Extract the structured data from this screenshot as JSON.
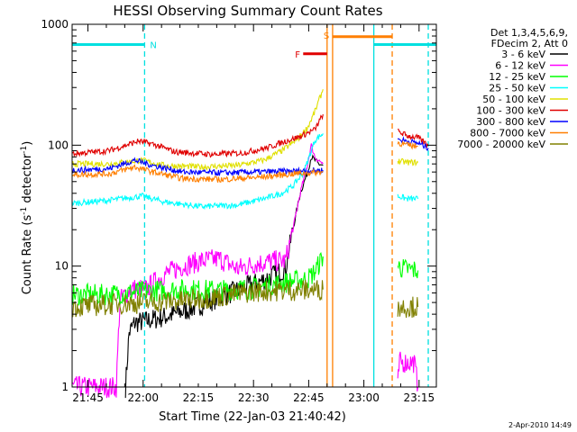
{
  "chart_data": {
    "type": "line",
    "title": "HESSI Observing Summary Count Rates",
    "xlabel": "Start Time (22-Jan-03 21:40:42)",
    "ylabel_main": "Count Rate (s",
    "ylabel_sup1": "-1",
    "ylabel_mid": " detector",
    "ylabel_sup2": "-1",
    "ylabel_end": ")",
    "x_unit": "minutes after 21:40:42",
    "xlim": [
      0,
      99
    ],
    "ylim": [
      1,
      1000
    ],
    "y_scale": "log",
    "x_ticks": [
      {
        "label": "21:45",
        "x": 4.3
      },
      {
        "label": "22:00",
        "x": 19.3
      },
      {
        "label": "22:15",
        "x": 34.3
      },
      {
        "label": "22:30",
        "x": 49.3
      },
      {
        "label": "22:45",
        "x": 64.3
      },
      {
        "label": "23:00",
        "x": 79.3
      },
      {
        "label": "23:15",
        "x": 94.3
      }
    ],
    "y_ticks": [
      {
        "label": "1",
        "y": 1
      },
      {
        "label": "10",
        "y": 10
      },
      {
        "label": "100",
        "y": 100
      },
      {
        "label": "1000",
        "y": 1000
      }
    ],
    "legend_header": [
      "Det 1,3,4,5,6,9,",
      "FDecim 2, Att 0"
    ],
    "legend_position": "right",
    "flag_bars": [
      {
        "label": "N",
        "color": "#00e0e0",
        "segments": [
          [
            0,
            19.7
          ],
          [
            82,
            99
          ]
        ],
        "y": 680
      },
      {
        "label": "S",
        "color": "#ff7f00",
        "segments": [
          [
            70.8,
            87
          ]
        ],
        "y": 790
      },
      {
        "label": "F",
        "color": "#e00000",
        "segments": [
          [
            62.8,
            69.3
          ]
        ],
        "y": 570
      }
    ],
    "marker_lines": [
      {
        "x": 19.7,
        "color": "#00e0e0",
        "style": "dashed"
      },
      {
        "x": 69.3,
        "color": "#ff7f00",
        "style": "solid"
      },
      {
        "x": 70.8,
        "color": "#ff7f00",
        "style": "solid"
      },
      {
        "x": 82.0,
        "color": "#00e0e0",
        "style": "solid"
      },
      {
        "x": 87.0,
        "color": "#ff7f00",
        "style": "dashed"
      },
      {
        "x": 96.8,
        "color": "#00e0e0",
        "style": "dashed"
      }
    ],
    "series": [
      {
        "name": "3 - 6 keV",
        "color": "#000000",
        "segments": [
          [
            [
              14.5,
              1
            ],
            [
              15.5,
              2.8
            ],
            [
              17,
              3.4
            ],
            [
              20,
              3.5
            ],
            [
              25,
              3.8
            ],
            [
              30,
              4.2
            ],
            [
              35,
              4.8
            ],
            [
              40,
              5.5
            ],
            [
              45,
              6.3
            ],
            [
              50,
              7.2
            ],
            [
              55,
              8.5
            ],
            [
              58,
              9.5
            ],
            [
              60,
              20
            ],
            [
              62,
              40
            ],
            [
              64,
              60
            ],
            [
              65,
              80
            ],
            [
              66,
              75
            ],
            [
              67,
              70
            ],
            [
              68.2,
              68
            ]
          ]
        ]
      },
      {
        "name": "6 - 12 keV",
        "color": "#ff00ff",
        "segments": [
          [
            [
              0,
              1
            ],
            [
              12,
              1
            ],
            [
              13,
              5.2
            ],
            [
              16,
              6.5
            ],
            [
              20,
              6.4
            ],
            [
              25,
              8.5
            ],
            [
              30,
              10
            ],
            [
              35,
              11
            ],
            [
              40,
              11.5
            ],
            [
              45,
              9.5
            ],
            [
              50,
              10.5
            ],
            [
              55,
              11
            ],
            [
              58,
              11
            ],
            [
              60,
              20
            ],
            [
              62,
              40
            ],
            [
              64,
              70
            ],
            [
              65,
              100
            ],
            [
              66,
              80
            ],
            [
              67,
              75
            ],
            [
              68.2,
              70
            ]
          ],
          [
            [
              88.5,
              1
            ],
            [
              89,
              1.6
            ],
            [
              93,
              1.6
            ],
            [
              94,
              1
            ]
          ]
        ]
      },
      {
        "name": "12 - 25 keV",
        "color": "#00ff00",
        "segments": [
          [
            [
              0,
              5.8
            ],
            [
              10,
              5.8
            ],
            [
              20,
              6.2
            ],
            [
              30,
              6.4
            ],
            [
              40,
              6.3
            ],
            [
              50,
              6.6
            ],
            [
              60,
              7.5
            ],
            [
              64,
              7.8
            ],
            [
              66,
              9
            ],
            [
              68.2,
              12
            ]
          ],
          [
            [
              88.5,
              10
            ],
            [
              90,
              9.5
            ],
            [
              94,
              9.2
            ]
          ]
        ]
      },
      {
        "name": "25 - 50 keV",
        "color": "#00ffff",
        "segments": [
          [
            [
              0,
              33
            ],
            [
              10,
              35
            ],
            [
              19,
              38
            ],
            [
              25,
              34
            ],
            [
              35,
              31
            ],
            [
              45,
              32
            ],
            [
              52,
              36
            ],
            [
              57,
              40
            ],
            [
              60,
              46
            ],
            [
              63,
              60
            ],
            [
              66,
              110
            ],
            [
              68.2,
              125
            ]
          ],
          [
            [
              88.5,
              38
            ],
            [
              91,
              36
            ],
            [
              94,
              36
            ]
          ]
        ]
      },
      {
        "name": "50 - 100 keV",
        "color": "#e0e000",
        "segments": [
          [
            [
              0,
              70
            ],
            [
              10,
              70
            ],
            [
              19,
              75
            ],
            [
              25,
              68
            ],
            [
              35,
              66
            ],
            [
              45,
              68
            ],
            [
              52,
              75
            ],
            [
              57,
              90
            ],
            [
              61,
              110
            ],
            [
              64,
              140
            ],
            [
              66,
              190
            ],
            [
              68.2,
              290
            ]
          ],
          [
            [
              88.5,
              74
            ],
            [
              91,
              72
            ],
            [
              94,
              72
            ]
          ]
        ]
      },
      {
        "name": "100 - 300 keV",
        "color": "#e00000",
        "segments": [
          [
            [
              0,
              85
            ],
            [
              10,
              90
            ],
            [
              18,
              108
            ],
            [
              22,
              102
            ],
            [
              28,
              88
            ],
            [
              38,
              84
            ],
            [
              46,
              86
            ],
            [
              53,
              95
            ],
            [
              58,
              108
            ],
            [
              62,
              118
            ],
            [
              66,
              135
            ],
            [
              68.2,
              180
            ]
          ],
          [
            [
              88.5,
              130
            ],
            [
              91,
              120
            ],
            [
              94,
              115
            ],
            [
              96.8,
              100
            ]
          ]
        ]
      },
      {
        "name": "300 - 800 keV",
        "color": "#0000ff",
        "segments": [
          [
            [
              0,
              62
            ],
            [
              10,
              64
            ],
            [
              17,
              75
            ],
            [
              22,
              68
            ],
            [
              30,
              60
            ],
            [
              40,
              59
            ],
            [
              50,
              60
            ],
            [
              60,
              61
            ],
            [
              68.2,
              62
            ]
          ],
          [
            [
              88.5,
              112
            ],
            [
              91,
              108
            ],
            [
              94,
              104
            ],
            [
              96.8,
              95
            ]
          ]
        ]
      },
      {
        "name": "800 - 7000 keV",
        "color": "#ff7f00",
        "segments": [
          [
            [
              0,
              57
            ],
            [
              10,
              58
            ],
            [
              17,
              66
            ],
            [
              22,
              60
            ],
            [
              30,
              53
            ],
            [
              40,
              52
            ],
            [
              50,
              54
            ],
            [
              60,
              58
            ],
            [
              68.2,
              60
            ]
          ],
          [
            [
              88.5,
              105
            ],
            [
              91,
              100
            ],
            [
              94,
              98
            ]
          ]
        ]
      },
      {
        "name": "7000 - 20000 keV",
        "color": "#808000",
        "segments": [
          [
            [
              0,
              4.6
            ],
            [
              10,
              4.8
            ],
            [
              20,
              5.0
            ],
            [
              30,
              5.2
            ],
            [
              40,
              5.6
            ],
            [
              50,
              6.2
            ],
            [
              60,
              6.3
            ],
            [
              68.2,
              6.4
            ]
          ],
          [
            [
              88.5,
              4.6
            ],
            [
              91,
              4.6
            ],
            [
              94,
              4.6
            ]
          ]
        ]
      }
    ]
  },
  "timestamp": "2-Apr-2010 14:49"
}
